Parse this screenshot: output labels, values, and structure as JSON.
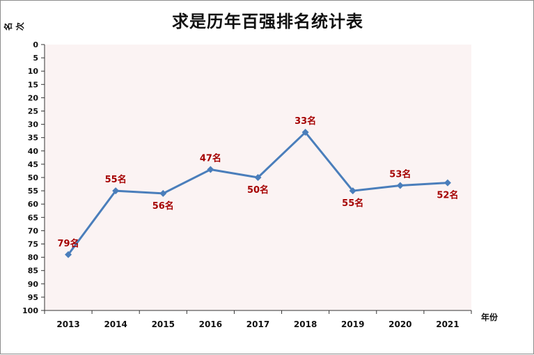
{
  "chart_data": {
    "type": "line",
    "title": "求是历年百强排名统计表",
    "xlabel": "年份",
    "ylabel": "名次",
    "categories": [
      "2013",
      "2014",
      "2015",
      "2016",
      "2017",
      "2018",
      "2019",
      "2020",
      "2021"
    ],
    "series": [
      {
        "values": [
          79,
          55,
          56,
          47,
          50,
          33,
          55,
          53,
          52
        ]
      }
    ],
    "data_labels": [
      "79名",
      "55名",
      "56名",
      "47名",
      "50名",
      "33名",
      "55名",
      "53名",
      "52名"
    ],
    "data_label_positions": [
      "above",
      "above",
      "below",
      "above",
      "below",
      "above",
      "below",
      "above",
      "below"
    ],
    "yticks": [
      "0",
      "5",
      "10",
      "15",
      "20",
      "25",
      "30",
      "35",
      "40",
      "45",
      "50",
      "55",
      "60",
      "65",
      "70",
      "75",
      "80",
      "85",
      "90",
      "95",
      "100"
    ],
    "ylim": [
      0,
      100
    ],
    "y_axis_inverted": true,
    "grid": false,
    "legend": "none",
    "colors": {
      "line": "#4a7ebb",
      "plot_background": "#fbf3f3",
      "label_text": "#a50000",
      "axis": "#333333"
    }
  }
}
